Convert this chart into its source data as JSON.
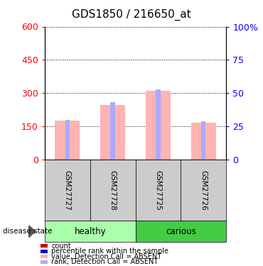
{
  "title": "GDS1850 / 216650_at",
  "samples": [
    "GSM27727",
    "GSM27728",
    "GSM27725",
    "GSM27726"
  ],
  "bar_values": [
    175,
    245,
    310,
    167
  ],
  "bar_rank_pct": [
    30,
    43,
    53,
    29
  ],
  "bar_value_color": "#FFB3B3",
  "bar_rank_color": "#AAAAFF",
  "left_yticks": [
    0,
    150,
    300,
    450,
    600
  ],
  "right_ytick_labels": [
    "0",
    "25",
    "50",
    "75",
    "100%"
  ],
  "right_ytick_vals": [
    0,
    25,
    50,
    75,
    100
  ],
  "ylim_left": [
    0,
    600
  ],
  "ylim_right": [
    0,
    100
  ],
  "groups": [
    {
      "label": "healthy",
      "n": 2,
      "color": "#AAFFAA"
    },
    {
      "label": "carious",
      "n": 2,
      "color": "#44CC44"
    }
  ],
  "group_label": "disease state",
  "sample_box_color": "#CCCCCC",
  "legend_items": [
    {
      "label": "count",
      "color": "#CC0000"
    },
    {
      "label": "percentile rank within the sample",
      "color": "#0000CC"
    },
    {
      "label": "value, Detection Call = ABSENT",
      "color": "#FFB3B3"
    },
    {
      "label": "rank, Detection Call = ABSENT",
      "color": "#AAAAFF"
    }
  ],
  "title_fontsize": 11,
  "tick_fontsize": 9
}
